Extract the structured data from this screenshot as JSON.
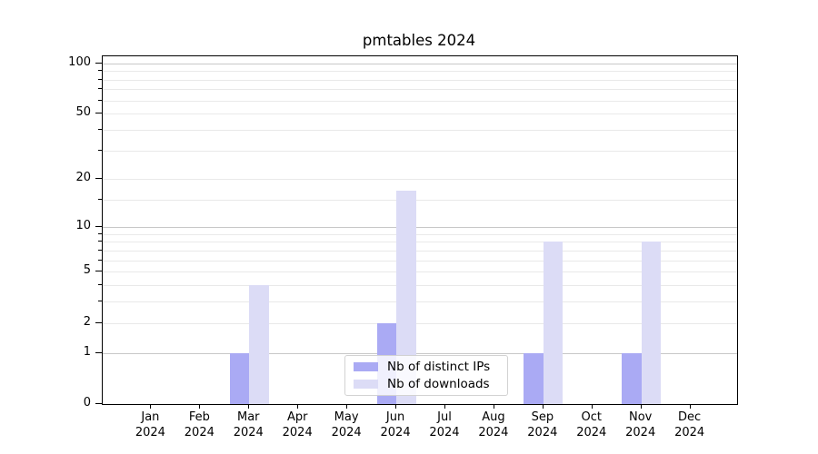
{
  "title": "pmtables 2024",
  "colors": {
    "distinct_ips": "#aaaaf4",
    "downloads": "#dcdcf6",
    "grid_major": "#c8c8c8",
    "grid_minor": "#e9e9e9",
    "axis": "#000000",
    "legend_border": "#d2d2d2"
  },
  "legend": {
    "entries": [
      {
        "label": "Nb of distinct IPs",
        "color": "#aaaaf4"
      },
      {
        "label": "Nb of downloads",
        "color": "#dcdcf6"
      }
    ]
  },
  "x_axis": {
    "months": [
      "Jan",
      "Feb",
      "Mar",
      "Apr",
      "May",
      "Jun",
      "Jul",
      "Aug",
      "Sep",
      "Oct",
      "Nov",
      "Dec"
    ],
    "year": "2024"
  },
  "y_axis": {
    "tick_labels": [
      0,
      1,
      2,
      5,
      10,
      20,
      50,
      100
    ]
  },
  "chart_data": {
    "type": "bar",
    "title": "pmtables 2024",
    "categories": [
      "Jan 2024",
      "Feb 2024",
      "Mar 2024",
      "Apr 2024",
      "May 2024",
      "Jun 2024",
      "Jul 2024",
      "Aug 2024",
      "Sep 2024",
      "Oct 2024",
      "Nov 2024",
      "Dec 2024"
    ],
    "series": [
      {
        "name": "Nb of distinct IPs",
        "color": "#aaaaf4",
        "values": [
          0,
          0,
          1,
          0,
          0,
          2,
          0,
          0,
          1,
          0,
          1,
          0
        ]
      },
      {
        "name": "Nb of downloads",
        "color": "#dcdcf6",
        "values": [
          0,
          0,
          4,
          0,
          0,
          17,
          0,
          0,
          8,
          0,
          8,
          0
        ]
      }
    ],
    "yscale": "log1p",
    "ylim": [
      0,
      110
    ],
    "yticks_labeled": [
      0,
      1,
      2,
      5,
      10,
      20,
      50,
      100
    ],
    "gridlines_major": [
      1,
      10,
      100
    ],
    "gridlines_minor": [
      2,
      3,
      4,
      5,
      6,
      7,
      8,
      9,
      15,
      20,
      30,
      40,
      50,
      60,
      70,
      80,
      90
    ],
    "grid": "horizontal",
    "legend_position": "lower center",
    "xlabel": "",
    "ylabel": ""
  }
}
